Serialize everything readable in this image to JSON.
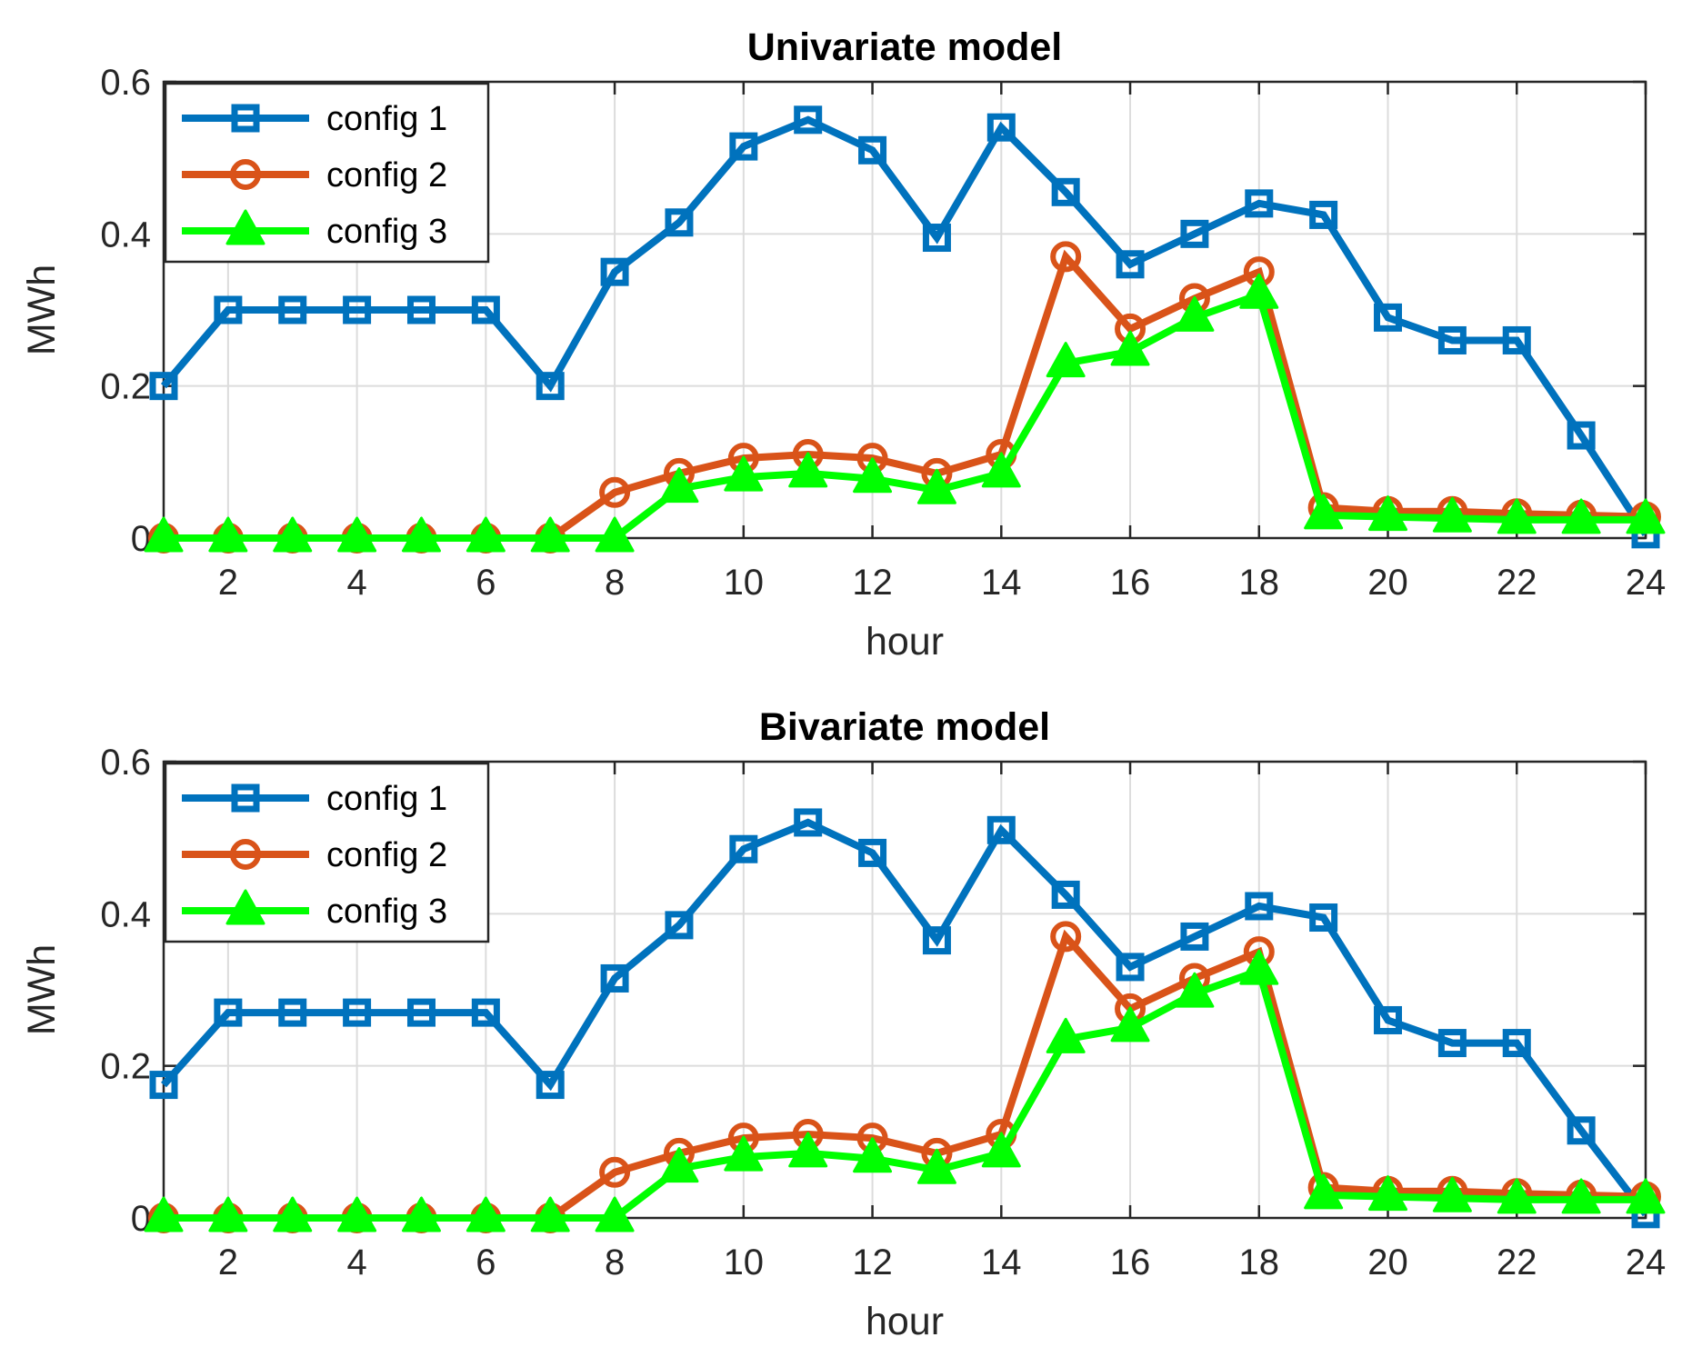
{
  "chart_data": [
    {
      "type": "line",
      "title": "Univariate model",
      "xlabel": "hour",
      "ylabel": "MWh",
      "xlim": [
        1,
        24
      ],
      "ylim": [
        0,
        0.6
      ],
      "xticks": [
        2,
        4,
        6,
        8,
        10,
        12,
        14,
        16,
        18,
        20,
        22,
        24
      ],
      "xtick_labels": [
        "2",
        "4",
        "6",
        "8",
        "10",
        "12",
        "14",
        "16",
        "18",
        "20",
        "22",
        "24"
      ],
      "yticks": [
        0,
        0.2,
        0.4,
        0.6
      ],
      "ytick_labels": [
        "0",
        "0.2",
        "0.4",
        "0.6"
      ],
      "grid": true,
      "legend_position": "top-left",
      "x": [
        1,
        2,
        3,
        4,
        5,
        6,
        7,
        8,
        9,
        10,
        11,
        12,
        13,
        14,
        15,
        16,
        17,
        18,
        19,
        20,
        21,
        22,
        23,
        24
      ],
      "series": [
        {
          "name": "config 1",
          "color": "#0072BD",
          "marker": "square",
          "values": [
            0.2,
            0.3,
            0.3,
            0.3,
            0.3,
            0.3,
            0.2,
            0.35,
            0.415,
            0.515,
            0.55,
            0.51,
            0.395,
            0.54,
            0.455,
            0.36,
            0.4,
            0.44,
            0.425,
            0.29,
            0.26,
            0.26,
            0.135,
            0.005
          ]
        },
        {
          "name": "config 2",
          "color": "#D95319",
          "marker": "circle",
          "values": [
            0,
            0,
            0,
            0,
            0,
            0,
            0,
            0.06,
            0.085,
            0.105,
            0.11,
            0.105,
            0.085,
            0.11,
            0.37,
            0.275,
            0.315,
            0.35,
            0.04,
            0.035,
            0.035,
            0.032,
            0.03,
            0.028
          ]
        },
        {
          "name": "config 3",
          "color": "#00FF00",
          "marker": "triangle",
          "values": [
            0,
            0,
            0,
            0,
            0,
            0,
            0,
            0,
            0.065,
            0.08,
            0.085,
            0.078,
            0.063,
            0.085,
            0.23,
            0.245,
            0.29,
            0.32,
            0.03,
            0.028,
            0.026,
            0.024,
            0.024,
            0.024
          ]
        }
      ]
    },
    {
      "type": "line",
      "title": "Bivariate model",
      "xlabel": "hour",
      "ylabel": "MWh",
      "xlim": [
        1,
        24
      ],
      "ylim": [
        0,
        0.6
      ],
      "xticks": [
        2,
        4,
        6,
        8,
        10,
        12,
        14,
        16,
        18,
        20,
        22,
        24
      ],
      "xtick_labels": [
        "2",
        "4",
        "6",
        "8",
        "10",
        "12",
        "14",
        "16",
        "18",
        "20",
        "22",
        "24"
      ],
      "yticks": [
        0,
        0.2,
        0.4,
        0.6
      ],
      "ytick_labels": [
        "0",
        "0.2",
        "0.4",
        "0.6"
      ],
      "grid": true,
      "legend_position": "top-left",
      "x": [
        1,
        2,
        3,
        4,
        5,
        6,
        7,
        8,
        9,
        10,
        11,
        12,
        13,
        14,
        15,
        16,
        17,
        18,
        19,
        20,
        21,
        22,
        23,
        24
      ],
      "series": [
        {
          "name": "config 1",
          "color": "#0072BD",
          "marker": "square",
          "values": [
            0.175,
            0.27,
            0.27,
            0.27,
            0.27,
            0.27,
            0.175,
            0.315,
            0.385,
            0.485,
            0.52,
            0.48,
            0.365,
            0.51,
            0.425,
            0.33,
            0.37,
            0.41,
            0.395,
            0.26,
            0.23,
            0.23,
            0.115,
            0.005
          ]
        },
        {
          "name": "config 2",
          "color": "#D95319",
          "marker": "circle",
          "values": [
            0,
            0,
            0,
            0,
            0,
            0,
            0,
            0.06,
            0.085,
            0.105,
            0.11,
            0.105,
            0.085,
            0.11,
            0.37,
            0.275,
            0.315,
            0.35,
            0.04,
            0.035,
            0.035,
            0.032,
            0.03,
            0.028
          ]
        },
        {
          "name": "config 3",
          "color": "#00FF00",
          "marker": "triangle",
          "values": [
            0,
            0,
            0,
            0,
            0,
            0,
            0,
            0,
            0.065,
            0.08,
            0.085,
            0.078,
            0.063,
            0.085,
            0.235,
            0.25,
            0.295,
            0.325,
            0.03,
            0.028,
            0.026,
            0.024,
            0.024,
            0.024
          ]
        }
      ]
    }
  ]
}
